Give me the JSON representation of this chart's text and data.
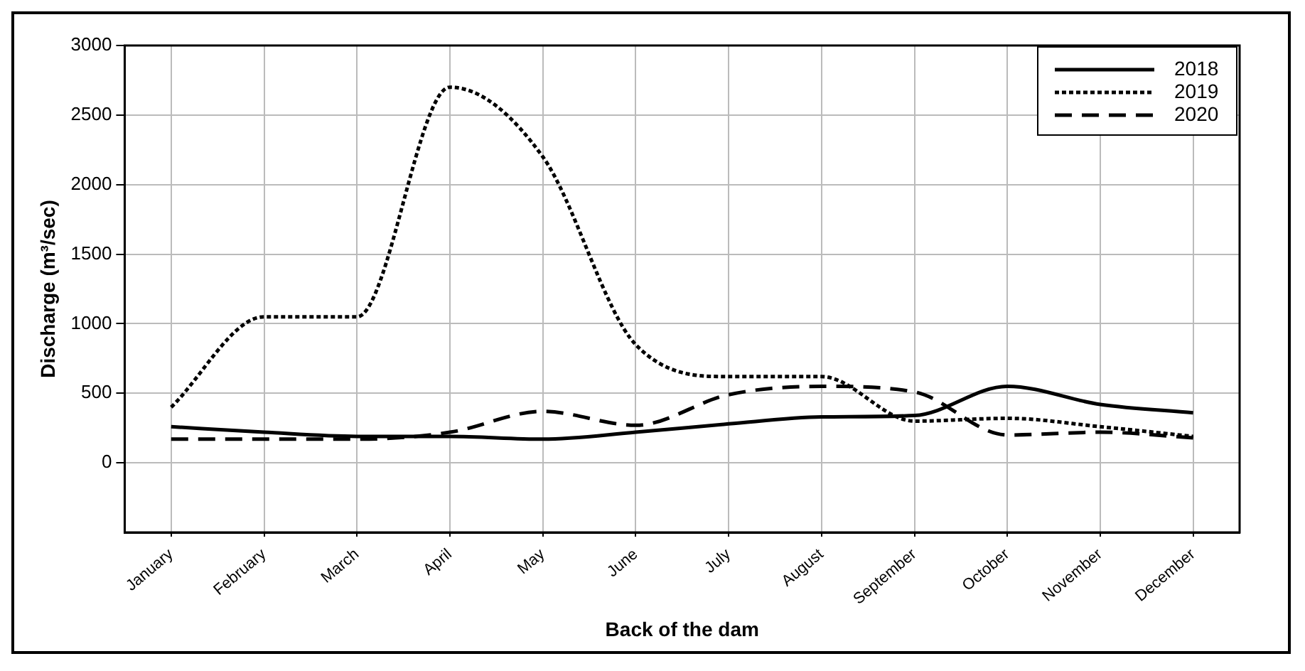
{
  "chart_data": {
    "type": "line",
    "xlabel": "Back of the dam",
    "ylabel": "Discharge (m³/sec)",
    "categories": [
      "January",
      "February",
      "March",
      "April",
      "May",
      "June",
      "July",
      "August",
      "September",
      "October",
      "November",
      "December"
    ],
    "series": [
      {
        "name": "2018",
        "color": "#000000",
        "line_style": "solid",
        "values": [
          260,
          220,
          190,
          190,
          170,
          220,
          280,
          330,
          340,
          550,
          420,
          360
        ]
      },
      {
        "name": "2019",
        "color": "#000000",
        "line_style": "dotted",
        "values": [
          400,
          1050,
          1050,
          2700,
          2200,
          850,
          620,
          620,
          300,
          320,
          260,
          190
        ]
      },
      {
        "name": "2020",
        "color": "#000000",
        "line_style": "dashed",
        "values": [
          170,
          170,
          170,
          220,
          370,
          270,
          490,
          550,
          510,
          200,
          220,
          180
        ]
      }
    ],
    "ylim": [
      -500,
      3000
    ],
    "yticks": [
      0,
      500,
      1000,
      1500,
      2000,
      2500,
      3000
    ],
    "grid": true,
    "legend": "top right",
    "marker": "none"
  }
}
